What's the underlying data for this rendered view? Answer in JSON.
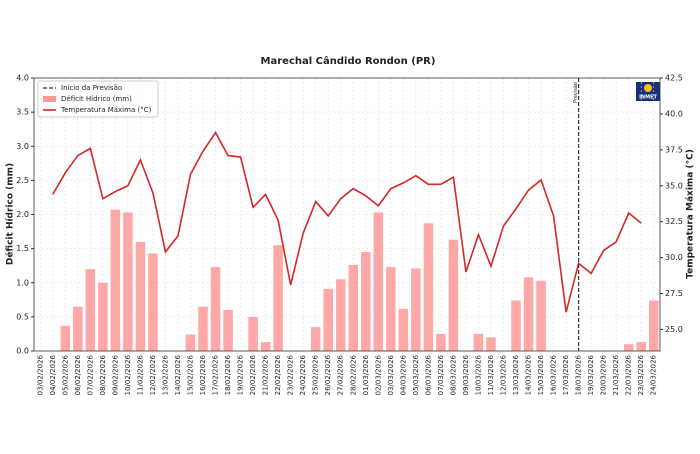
{
  "chart_data": {
    "type": "bar_line",
    "title": "Marechal Cândido Rondon (PR)",
    "ylabel": "Déficit Hídrico (mm)",
    "y2label": "Temperatura Máxima (°C)",
    "forecast_label": "Início da Previsão",
    "forecast_text": "Previsão",
    "forecast_start": "18/03/2026",
    "logo": "INMET",
    "grid": true,
    "legend": "upper left",
    "categories": [
      "03/02/2026",
      "04/02/2026",
      "05/02/2026",
      "06/02/2026",
      "07/02/2026",
      "08/02/2026",
      "09/02/2026",
      "10/02/2026",
      "11/02/2026",
      "12/02/2026",
      "13/02/2026",
      "14/02/2026",
      "15/02/2026",
      "16/02/2026",
      "17/02/2026",
      "18/02/2026",
      "19/02/2026",
      "20/02/2026",
      "21/02/2026",
      "22/02/2026",
      "23/02/2026",
      "24/02/2026",
      "25/02/2026",
      "26/02/2026",
      "27/02/2026",
      "28/02/2026",
      "01/03/2026",
      "02/03/2026",
      "03/03/2026",
      "04/03/2026",
      "05/03/2026",
      "06/03/2026",
      "07/03/2026",
      "08/03/2026",
      "09/03/2026",
      "10/03/2026",
      "11/03/2026",
      "12/03/2026",
      "13/03/2026",
      "14/03/2026",
      "15/03/2026",
      "16/03/2026",
      "17/03/2026",
      "18/03/2026",
      "19/03/2026",
      "20/03/2026",
      "21/03/2026",
      "22/03/2026",
      "23/03/2026",
      "24/03/2026"
    ],
    "series": [
      {
        "name": "Déficit Hídrico (mm)",
        "type": "bar",
        "color": "#ff9999",
        "values": [
          0,
          0,
          0.37,
          0.65,
          1.2,
          1.0,
          2.07,
          2.03,
          1.6,
          1.43,
          0,
          0,
          0.24,
          0.65,
          1.23,
          0.6,
          0,
          0.5,
          0.13,
          1.55,
          0,
          0,
          0.35,
          0.91,
          1.05,
          1.26,
          1.45,
          2.03,
          1.23,
          0.62,
          1.21,
          1.87,
          0.25,
          1.63,
          0,
          0.25,
          0.2,
          0,
          0.74,
          1.08,
          1.03,
          0,
          0,
          0,
          0,
          0,
          0,
          0.1,
          0.13,
          0.74
        ]
      },
      {
        "name": "Temperatura Máxima (°C)",
        "type": "line",
        "axis": "y2",
        "color": "#d62728",
        "values": [
          null,
          34.4,
          35.9,
          37.1,
          37.6,
          34.1,
          34.6,
          35.0,
          36.8,
          34.5,
          30.4,
          31.5,
          35.8,
          37.4,
          38.7,
          37.1,
          37.0,
          33.5,
          34.4,
          32.6,
          28.1,
          31.7,
          33.9,
          32.9,
          34.1,
          34.8,
          34.3,
          33.6,
          34.8,
          35.2,
          35.7,
          35.1,
          35.1,
          35.6,
          29.0,
          31.6,
          29.4,
          32.2,
          33.4,
          34.7,
          35.4,
          32.9,
          26.2,
          29.6,
          28.9,
          30.5,
          31.1,
          33.1,
          32.4,
          null
        ]
      }
    ],
    "ylim": [
      0,
      4
    ],
    "yticks": [
      {
        "value": 0,
        "label": "0.0"
      },
      {
        "value": 0.5,
        "label": "0.5"
      },
      {
        "value": 1,
        "label": "1.0"
      },
      {
        "value": 1.5,
        "label": "1.5"
      },
      {
        "value": 2,
        "label": "2.0"
      },
      {
        "value": 2.5,
        "label": "2.5"
      },
      {
        "value": 3,
        "label": "3.0"
      },
      {
        "value": 3.5,
        "label": "3.5"
      },
      {
        "value": 4,
        "label": "4.0"
      }
    ],
    "y2lim": [
      23.5,
      42.5
    ],
    "y2ticks": [
      {
        "value": 25,
        "label": "25.0"
      },
      {
        "value": 27.5,
        "label": "27.5"
      },
      {
        "value": 30,
        "label": "30.0"
      },
      {
        "value": 32.5,
        "label": "32.5"
      },
      {
        "value": 35,
        "label": "35.0"
      },
      {
        "value": 37.5,
        "label": "37.5"
      },
      {
        "value": 40,
        "label": "40.0"
      },
      {
        "value": 42.5,
        "label": "42.5"
      }
    ]
  }
}
